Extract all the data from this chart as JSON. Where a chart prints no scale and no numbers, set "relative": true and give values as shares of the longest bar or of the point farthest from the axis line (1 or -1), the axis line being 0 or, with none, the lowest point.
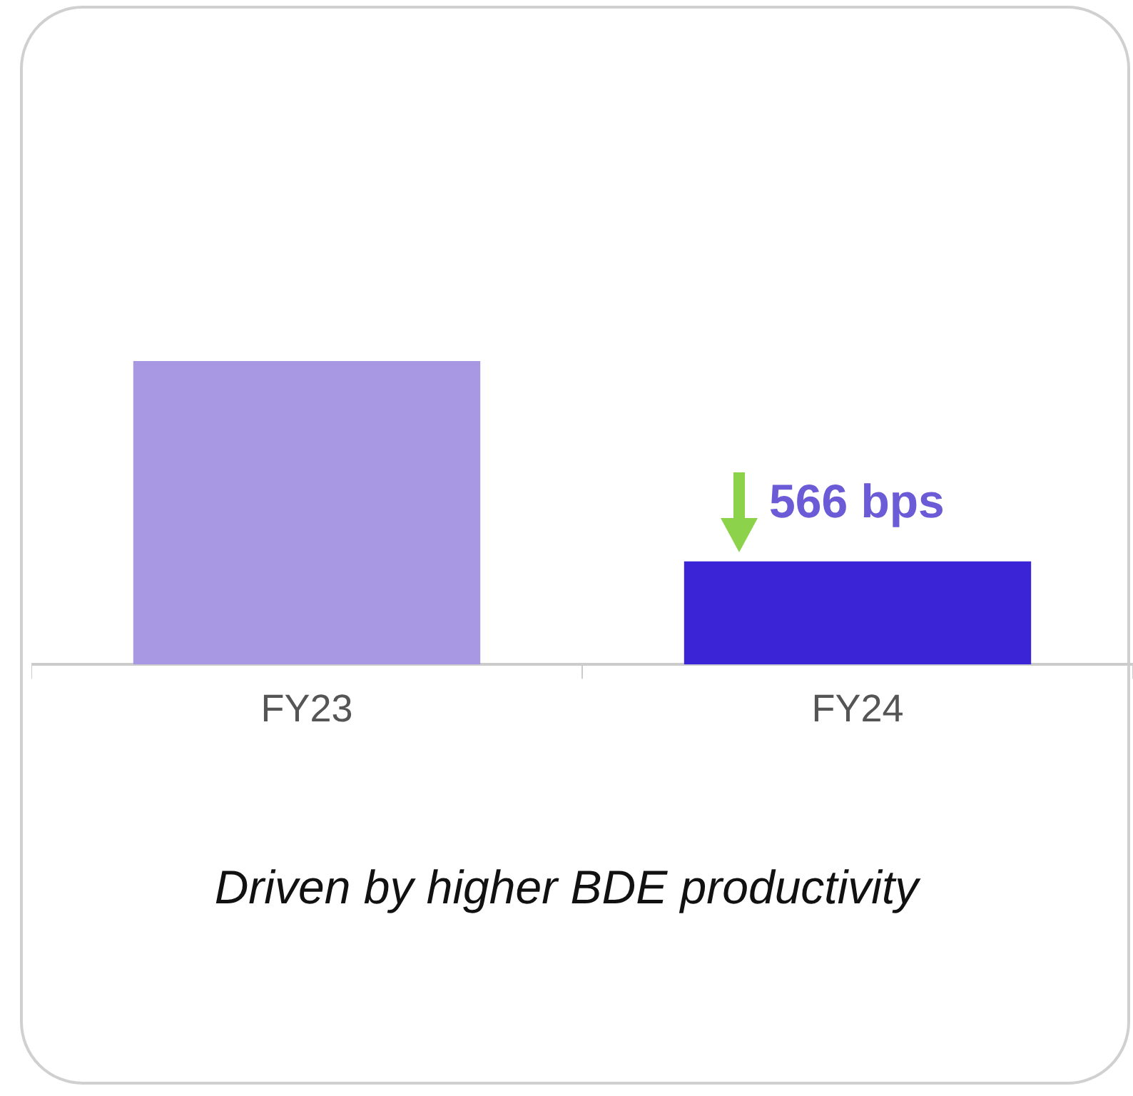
{
  "chart_data": {
    "type": "bar",
    "relative": true,
    "categories": [
      "FY23",
      "FY24"
    ],
    "values": [
      1,
      0.34
    ],
    "colors": [
      "#a898e4",
      "#3a24d6"
    ],
    "grid": false,
    "legend": false,
    "annotations": [
      "566 bps",
      "Driven by higher BDE productivity"
    ]
  }
}
